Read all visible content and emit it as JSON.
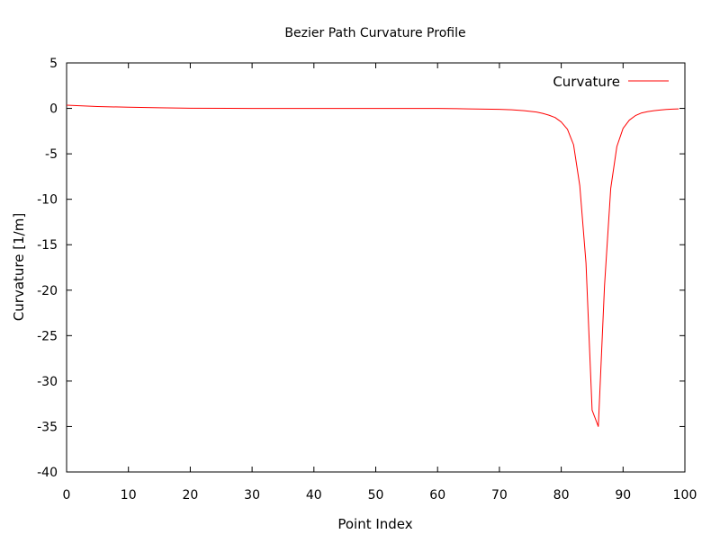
{
  "chart_data": {
    "type": "line",
    "title": "Bezier Path Curvature Profile",
    "xlabel": "Point Index",
    "ylabel": "Curvature [1/m]",
    "xlim": [
      0,
      100
    ],
    "ylim": [
      -40,
      5
    ],
    "xticks": [
      0,
      10,
      20,
      30,
      40,
      50,
      60,
      70,
      80,
      90,
      100
    ],
    "yticks": [
      5,
      0,
      -5,
      -10,
      -15,
      -20,
      -25,
      -30,
      -35,
      -40
    ],
    "grid": false,
    "legend_position": "top-right",
    "series": [
      {
        "name": "Curvature",
        "color": "#ff0000",
        "x": [
          0,
          5,
          10,
          15,
          20,
          30,
          40,
          50,
          60,
          65,
          70,
          72,
          74,
          76,
          77,
          78,
          79,
          80,
          81,
          82,
          83,
          84,
          85,
          86,
          87,
          88,
          89,
          90,
          91,
          92,
          93,
          94,
          95,
          96,
          97,
          98,
          99
        ],
        "y": [
          0.35,
          0.2,
          0.12,
          0.06,
          0.02,
          0.0,
          0.0,
          0.0,
          0.0,
          -0.05,
          -0.1,
          -0.15,
          -0.25,
          -0.4,
          -0.55,
          -0.75,
          -1.0,
          -1.5,
          -2.3,
          -4.0,
          -8.5,
          -17.0,
          -33.2,
          -35.0,
          -19.5,
          -8.8,
          -4.2,
          -2.2,
          -1.3,
          -0.8,
          -0.5,
          -0.35,
          -0.25,
          -0.18,
          -0.12,
          -0.08,
          -0.05
        ]
      }
    ]
  }
}
